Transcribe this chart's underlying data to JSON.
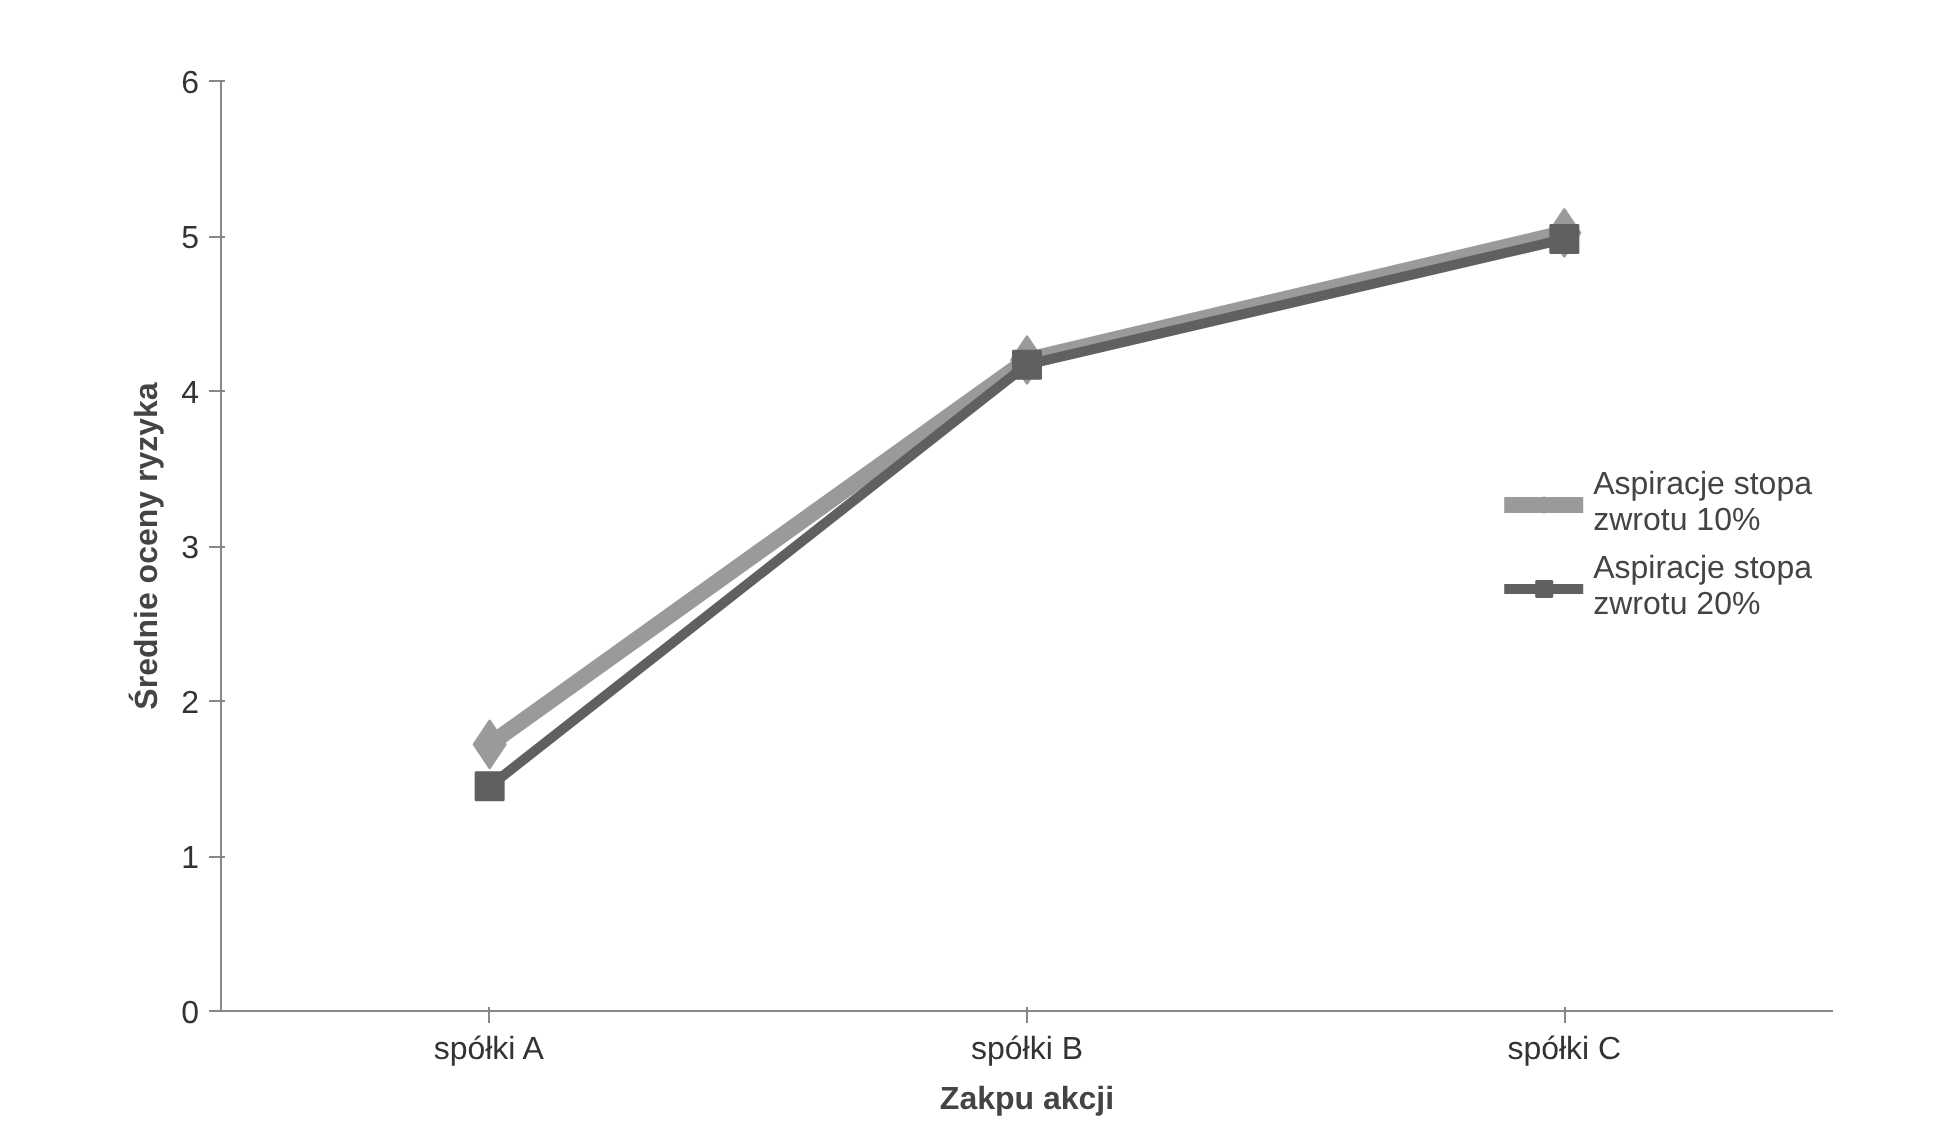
{
  "chart_data": {
    "type": "line",
    "xlabel": "Zakpu akcji",
    "ylabel": "Średnie oceny ryzyka",
    "categories": [
      "spółki A",
      "spółki B",
      "spółki C"
    ],
    "series": [
      {
        "name": "Aspiracje stopa zwrotu 10%",
        "color": "#9a9a9a",
        "marker": "diamond",
        "values": [
          1.72,
          4.2,
          5.02
        ]
      },
      {
        "name": "Aspiracje stopa zwrotu 20%",
        "color": "#606060",
        "marker": "square",
        "values": [
          1.45,
          4.17,
          4.98
        ]
      }
    ],
    "ylim": [
      0,
      6
    ],
    "yticks": [
      0,
      1,
      2,
      3,
      4,
      5,
      6
    ],
    "grid": false,
    "legend": "right",
    "line_style": "solid"
  }
}
